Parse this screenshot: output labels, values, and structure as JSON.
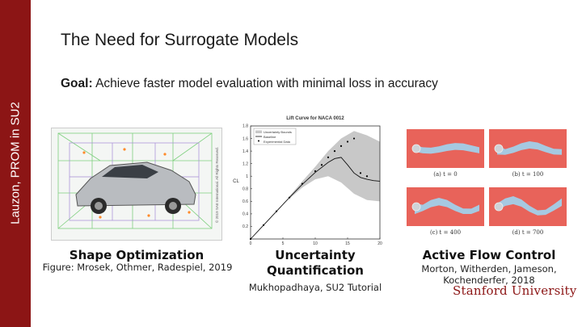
{
  "slide": {
    "side_label": "Lauzon, PROM in SU2",
    "title": "The Need for Surrogate Models",
    "goal_label": "Goal:",
    "goal_text": " Achieve faster model evaluation with minimal loss in accuracy",
    "logo": "Stanford University"
  },
  "sections": [
    {
      "heading": "Shape Optimization",
      "citation": "Figure: Mrosek, Othmer, Radespiel, 2019"
    },
    {
      "heading": "Uncertainty Quantification",
      "citation": "Mukhopadhaya, SU2 Tutorial"
    },
    {
      "heading": "Active Flow Control",
      "citation": "Morton, Witherden, Jameson, Kochenderfer, 2018"
    }
  ],
  "car_figure": {
    "copyright": "© 2019 SAE International. All Rights Reserved."
  },
  "chart_data": {
    "type": "line",
    "title": "Lift Curve for NACA 0012",
    "xlabel": "",
    "ylabel": "CL",
    "xlim": [
      0,
      20
    ],
    "ylim": [
      0,
      1.8
    ],
    "x_ticks": [
      0,
      5,
      10,
      15,
      20
    ],
    "y_ticks": [
      0.2,
      0.4,
      0.6,
      0.8,
      1,
      1.2,
      1.4,
      1.6,
      1.8
    ],
    "legend": [
      "Uncertainty Bounds",
      "Baseline",
      "Experimental Data"
    ],
    "legend_position": "top-left",
    "series": [
      {
        "name": "Baseline",
        "x": [
          0,
          2,
          4,
          6,
          8,
          10,
          12,
          13,
          14,
          15,
          16,
          17,
          18,
          19,
          20
        ],
        "y": [
          0,
          0.22,
          0.44,
          0.66,
          0.87,
          1.06,
          1.22,
          1.28,
          1.3,
          1.18,
          1.05,
          0.98,
          0.95,
          0.93,
          0.92
        ]
      },
      {
        "name": "Experimental Data",
        "x": [
          0,
          2,
          4,
          6,
          8,
          10,
          11,
          12,
          13,
          14,
          15,
          16,
          17,
          18
        ],
        "y": [
          0,
          0.22,
          0.44,
          0.66,
          0.88,
          1.08,
          1.18,
          1.3,
          1.4,
          1.48,
          1.55,
          1.6,
          1.05,
          1.0
        ]
      },
      {
        "name": "Uncertainty Bounds",
        "x": [
          6,
          8,
          10,
          12,
          14,
          16,
          18,
          20
        ],
        "upper": [
          0.68,
          0.92,
          1.15,
          1.4,
          1.6,
          1.72,
          1.65,
          1.55
        ],
        "lower": [
          0.64,
          0.82,
          0.95,
          1.0,
          0.9,
          0.72,
          0.62,
          0.6
        ]
      }
    ]
  },
  "flow_panels": [
    {
      "label": "(a) t = 0"
    },
    {
      "label": "(b) t = 100"
    },
    {
      "label": "(c) t = 400"
    },
    {
      "label": "(d) t = 700"
    }
  ],
  "colors": {
    "accent": "#8c1515",
    "band": "#c8c8c8",
    "flow_bg": "#e8635a",
    "flow_wake": "#9fd4ef"
  }
}
